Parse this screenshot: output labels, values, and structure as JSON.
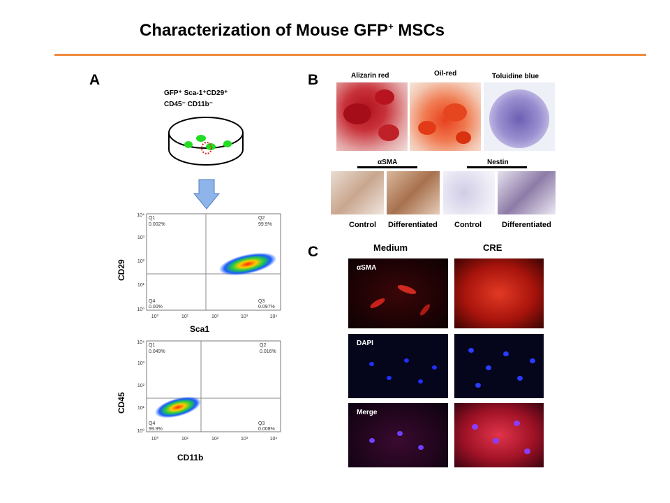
{
  "slide": {
    "title_main": "Characterization of Mouse GFP",
    "title_sup": "+",
    "title_end": " MSCs"
  },
  "panel_a": {
    "letter": "A",
    "dish_label_line1": "GFP⁺ Sca-1⁺CD29⁺",
    "dish_label_line2": "CD45⁻ CD11b⁻",
    "plot1": {
      "ylabel": "CD29",
      "xlabel": "Sca1",
      "q1": "Q1",
      "q1_val": "0.002%",
      "q2": "Q2",
      "q2_val": "99.9%",
      "q3": "Q3",
      "q3_val": "0.097%",
      "q4": "Q4",
      "q4_val": "0.00%"
    },
    "plot2": {
      "ylabel": "CD45",
      "xlabel": "CD11b",
      "q1": "Q1",
      "q1_val": "0.049%",
      "q2": "Q2",
      "q2_val": "0.016%",
      "q3": "Q3",
      "q3_val": "0.008%",
      "q4": "Q4",
      "q4_val": "99.9%"
    },
    "ticks": [
      "10⁰",
      "10¹",
      "10²",
      "10³",
      "10⁴"
    ]
  },
  "panel_b": {
    "letter": "B",
    "stain1": "Alizarin red",
    "stain2": "Oil-red",
    "stain3": "Toluidine  blue",
    "group1": "αSMA",
    "group2": "Nestin",
    "cap1": "Control",
    "cap2": "Differentiated",
    "cap3": "Control",
    "cap4": "Differentiated"
  },
  "panel_c": {
    "letter": "C",
    "col1": "Medium",
    "col2": "CRE",
    "row1": "αSMA",
    "row2": "DAPI",
    "row3": "Merge"
  },
  "colors": {
    "accent_rule": "#ee8a3c",
    "gfp_green": "#22dd22",
    "arrow_blue": "#8fb4ea"
  }
}
